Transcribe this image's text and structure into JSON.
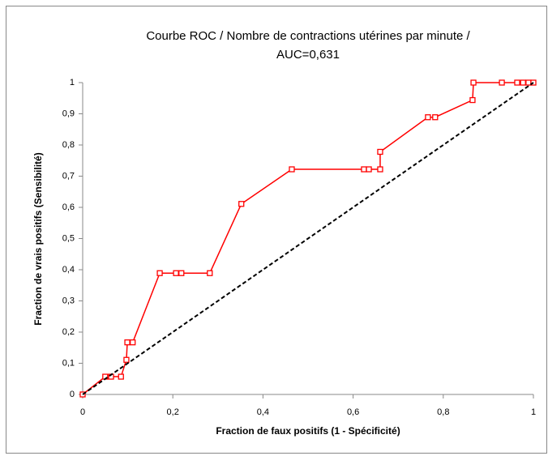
{
  "chart_data": {
    "type": "line",
    "title": [
      "Courbe ROC / Nombre de contractions utérines par minute /",
      "AUC=0,631"
    ],
    "x_label": "Fraction de faux positifs (1 - Spécificité)",
    "y_label": "Fraction de vrais positifs (Sensibilité)",
    "xlim": [
      0,
      1
    ],
    "ylim": [
      0,
      1
    ],
    "xticks": [
      0,
      {
        "value": 0.2,
        "label": "0,2"
      },
      {
        "value": 0.4,
        "label": "0,4"
      },
      {
        "value": 0.6,
        "label": "0,6"
      },
      {
        "value": 0.8,
        "label": "0,8"
      },
      1
    ],
    "yticks": [
      0,
      {
        "value": 0.1,
        "label": "0,1"
      },
      {
        "value": 0.2,
        "label": "0,2"
      },
      {
        "value": 0.3,
        "label": "0,3"
      },
      {
        "value": 0.4,
        "label": "0,4"
      },
      {
        "value": 0.5,
        "label": "0,5"
      },
      {
        "value": 0.6,
        "label": "0,6"
      },
      {
        "value": 0.7,
        "label": "0,7"
      },
      {
        "value": 0.8,
        "label": "0,8"
      },
      {
        "value": 0.9,
        "label": "0,9"
      },
      1
    ],
    "grid": false,
    "series": [
      {
        "color": "#ff0000",
        "marker": "square",
        "line_style": "solid",
        "x": [
          0,
          0.05,
          0.063,
          0.085,
          0.097,
          0.099,
          0.111,
          0.171,
          0.207,
          0.219,
          0.282,
          0.352,
          0.464,
          0.624,
          0.635,
          0.66,
          0.66,
          0.766,
          0.782,
          0.865,
          0.867,
          0.93,
          0.964,
          0.977,
          0.989,
          1
        ],
        "values": [
          0,
          0.057,
          0.057,
          0.057,
          0.111,
          0.167,
          0.167,
          0.389,
          0.389,
          0.389,
          0.389,
          0.611,
          0.722,
          0.722,
          0.722,
          0.722,
          0.778,
          0.889,
          0.889,
          0.944,
          1,
          1,
          1,
          1,
          1,
          1
        ]
      },
      {
        "color": "#000000",
        "marker": "none",
        "line_style": "dashed",
        "x": [
          0,
          1
        ],
        "values": [
          0,
          1
        ]
      }
    ]
  }
}
